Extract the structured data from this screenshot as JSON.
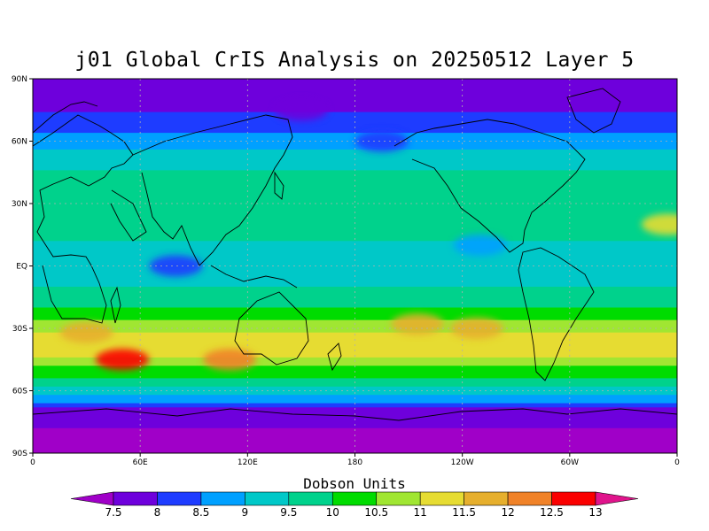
{
  "title": "j01 Global CrIS Analysis on 20250512 Layer 5",
  "axes": {
    "lat_ticks": [
      "90N",
      "60N",
      "30N",
      "EQ",
      "30S",
      "60S",
      "90S"
    ],
    "lon_ticks": [
      "0",
      "60E",
      "120E",
      "180",
      "120W",
      "60W",
      "0"
    ]
  },
  "colorbar": {
    "label": "Dobson Units",
    "tick_labels": [
      "7.5",
      "8",
      "8.5",
      "9",
      "9.5",
      "10",
      "10.5",
      "11",
      "11.5",
      "12",
      "12.5",
      "13"
    ],
    "colors": [
      "#a000c8",
      "#6e00dc",
      "#1e3cff",
      "#00a0ff",
      "#00c8c8",
      "#00d28c",
      "#00dc00",
      "#a0e632",
      "#e6dc32",
      "#e6af2d",
      "#f08228",
      "#fa0000",
      "#e0148c"
    ]
  },
  "chart_data": {
    "type": "heatmap",
    "title": "j01 Global CrIS Analysis on 20250512 Layer 5",
    "units": "Dobson Units",
    "lon_range": [
      0,
      360
    ],
    "lat_range": [
      -90,
      90
    ],
    "contour_levels": [
      7.5,
      8,
      8.5,
      9,
      9.5,
      10,
      10.5,
      11,
      11.5,
      12,
      12.5,
      13
    ],
    "zonal_profile": [
      {
        "lat": 90,
        "value": 7.6
      },
      {
        "lat": 80,
        "value": 7.8
      },
      {
        "lat": 70,
        "value": 8.1
      },
      {
        "lat": 60,
        "value": 8.7
      },
      {
        "lat": 50,
        "value": 9.3
      },
      {
        "lat": 40,
        "value": 9.8
      },
      {
        "lat": 30,
        "value": 10.0
      },
      {
        "lat": 20,
        "value": 9.8
      },
      {
        "lat": 10,
        "value": 9.4
      },
      {
        "lat": 0,
        "value": 9.3
      },
      {
        "lat": -10,
        "value": 9.5
      },
      {
        "lat": -20,
        "value": 10.0
      },
      {
        "lat": -30,
        "value": 10.9
      },
      {
        "lat": -40,
        "value": 11.3
      },
      {
        "lat": -50,
        "value": 10.4
      },
      {
        "lat": -60,
        "value": 9.2
      },
      {
        "lat": -70,
        "value": 7.8
      },
      {
        "lat": -80,
        "value": 7.4
      },
      {
        "lat": -90,
        "value": 7.4
      }
    ],
    "maxima": [
      {
        "lon": 50,
        "lat": -45,
        "value": 12.5
      },
      {
        "lon": 110,
        "lat": -45,
        "value": 12.3
      },
      {
        "lon": 30,
        "lat": -32,
        "value": 11.8
      },
      {
        "lon": 215,
        "lat": -28,
        "value": 11.8
      },
      {
        "lon": 248,
        "lat": -30,
        "value": 11.5
      },
      {
        "lon": 355,
        "lat": 20,
        "value": 11.0
      }
    ],
    "minima": [
      {
        "lon": 80,
        "lat": 0,
        "value": 8.4
      },
      {
        "lon": 250,
        "lat": 10,
        "value": 8.6
      },
      {
        "lon": 195,
        "lat": 60,
        "value": 8.2
      },
      {
        "lon": 150,
        "lat": 75,
        "value": 7.8
      }
    ]
  }
}
